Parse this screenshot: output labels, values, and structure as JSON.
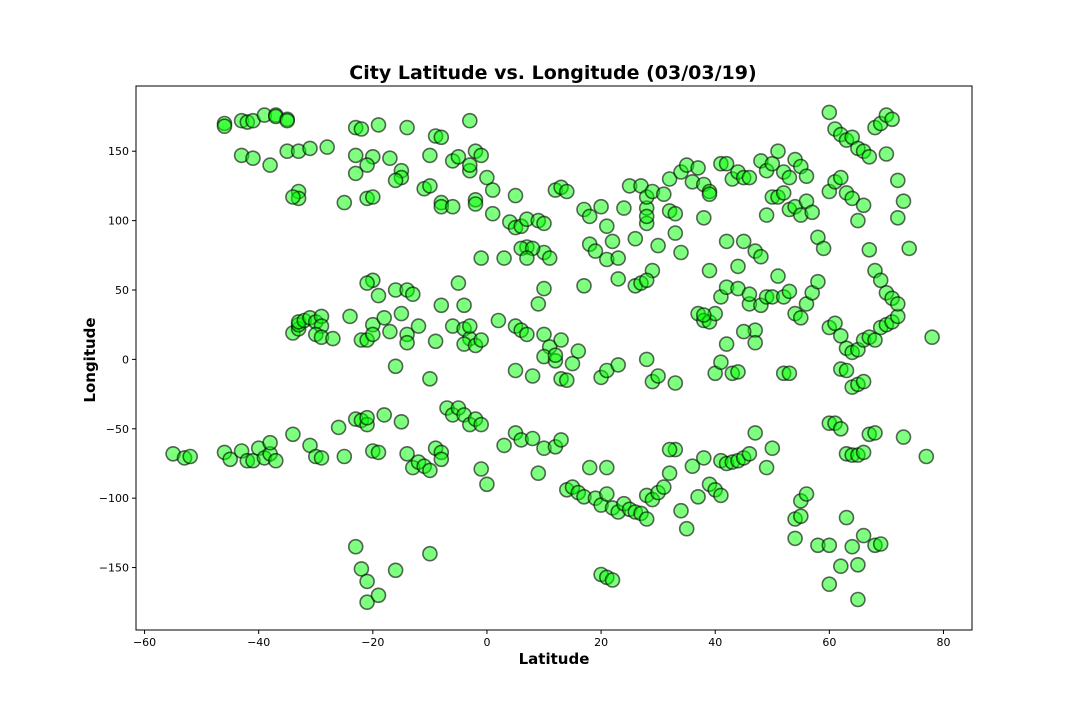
{
  "chart_data": {
    "type": "scatter",
    "title": "City Latitude vs. Longitude (03/03/19)",
    "xlabel": "Latitude",
    "ylabel": "Longitude",
    "xlim": [
      -61.5,
      85
    ],
    "ylim": [
      -195,
      197
    ],
    "xticks": [
      -60,
      -40,
      -20,
      0,
      20,
      40,
      60,
      80
    ],
    "yticks": [
      -150,
      -100,
      -50,
      0,
      50,
      100,
      150
    ],
    "grid": false,
    "marker": {
      "fill": "#00ff00",
      "edge": "#000000",
      "fill_alpha": 0.5
    },
    "points": [
      [
        -46,
        170
      ],
      [
        -46,
        168
      ],
      [
        -43,
        172
      ],
      [
        -42,
        171
      ],
      [
        -41,
        172
      ],
      [
        -39,
        176
      ],
      [
        -37,
        176
      ],
      [
        -37,
        175
      ],
      [
        -35,
        173
      ],
      [
        -35,
        172
      ],
      [
        -43,
        147
      ],
      [
        -41,
        145
      ],
      [
        -38,
        140
      ],
      [
        -35,
        150
      ],
      [
        -33,
        150
      ],
      [
        -31,
        152
      ],
      [
        -28,
        153
      ],
      [
        -33,
        121
      ],
      [
        -33,
        116
      ],
      [
        -34,
        117
      ],
      [
        -23,
        167
      ],
      [
        -22,
        166
      ],
      [
        -19,
        169
      ],
      [
        -14,
        167
      ],
      [
        -3,
        172
      ],
      [
        -23,
        147
      ],
      [
        -20,
        146
      ],
      [
        -21,
        140
      ],
      [
        -17,
        145
      ],
      [
        -15,
        136
      ],
      [
        -15,
        131
      ],
      [
        -16,
        129
      ],
      [
        -25,
        113
      ],
      [
        -23,
        134
      ],
      [
        -21,
        116
      ],
      [
        -20,
        117
      ],
      [
        -11,
        123
      ],
      [
        -10,
        125
      ],
      [
        -9,
        161
      ],
      [
        -8,
        160
      ],
      [
        -10,
        147
      ],
      [
        -6,
        143
      ],
      [
        -5,
        146
      ],
      [
        -2,
        150
      ],
      [
        -1,
        147
      ],
      [
        0,
        131
      ],
      [
        -3,
        136
      ],
      [
        -3,
        140
      ],
      [
        -8,
        113
      ],
      [
        -8,
        110
      ],
      [
        -6,
        110
      ],
      [
        -2,
        115
      ],
      [
        -2,
        112
      ],
      [
        1,
        122
      ],
      [
        1,
        105
      ],
      [
        4,
        99
      ],
      [
        5,
        95
      ],
      [
        5,
        118
      ],
      [
        6,
        96
      ],
      [
        7,
        101
      ],
      [
        9,
        100
      ],
      [
        10,
        98
      ],
      [
        10,
        77
      ],
      [
        11,
        73
      ],
      [
        12,
        122
      ],
      [
        13,
        124
      ],
      [
        14,
        121
      ],
      [
        7,
        81
      ],
      [
        6,
        80
      ],
      [
        8,
        80
      ],
      [
        -1,
        73
      ],
      [
        3,
        73
      ],
      [
        7,
        73
      ],
      [
        -20,
        57
      ],
      [
        -21,
        55
      ],
      [
        -19,
        46
      ],
      [
        -16,
        50
      ],
      [
        -14,
        50
      ],
      [
        -13,
        47
      ],
      [
        -5,
        55
      ],
      [
        -34,
        19
      ],
      [
        -33,
        22
      ],
      [
        -33,
        25
      ],
      [
        -33,
        27
      ],
      [
        -32,
        28
      ],
      [
        -31,
        30
      ],
      [
        -30,
        27
      ],
      [
        -29,
        31
      ],
      [
        -29,
        24
      ],
      [
        -30,
        18
      ],
      [
        -29,
        16
      ],
      [
        -27,
        15
      ],
      [
        -24,
        31
      ],
      [
        -22,
        14
      ],
      [
        -21,
        14
      ],
      [
        -20,
        25
      ],
      [
        -18,
        30
      ],
      [
        -20,
        18
      ],
      [
        -17,
        20
      ],
      [
        -15,
        33
      ],
      [
        -14,
        18
      ],
      [
        -14,
        12
      ],
      [
        -12,
        24
      ],
      [
        -9,
        13
      ],
      [
        -8,
        39
      ],
      [
        -6,
        24
      ],
      [
        -4,
        22
      ],
      [
        -4,
        39
      ],
      [
        -3,
        15
      ],
      [
        -3,
        24
      ],
      [
        -4,
        11
      ],
      [
        -2,
        10
      ],
      [
        -1,
        14
      ],
      [
        2,
        28
      ],
      [
        5,
        24
      ],
      [
        6,
        21
      ],
      [
        7,
        18
      ],
      [
        8,
        -12
      ],
      [
        10,
        18
      ],
      [
        11,
        9
      ],
      [
        10,
        2
      ],
      [
        12,
        -1
      ],
      [
        12,
        3
      ],
      [
        13,
        14
      ],
      [
        13,
        -14
      ],
      [
        14,
        -15
      ],
      [
        15,
        -3
      ],
      [
        16,
        6
      ],
      [
        9,
        40
      ],
      [
        10,
        51
      ],
      [
        17,
        53
      ],
      [
        18,
        83
      ],
      [
        19,
        78
      ],
      [
        20,
        110
      ],
      [
        21,
        96
      ],
      [
        22,
        85
      ],
      [
        17,
        108
      ],
      [
        18,
        103
      ],
      [
        21,
        72
      ],
      [
        23,
        73
      ],
      [
        23,
        58
      ],
      [
        24,
        109
      ],
      [
        25,
        125
      ],
      [
        26,
        87
      ],
      [
        27,
        125
      ],
      [
        28,
        109
      ],
      [
        28,
        98
      ],
      [
        28,
        103
      ],
      [
        29,
        64
      ],
      [
        30,
        82
      ],
      [
        26,
        53
      ],
      [
        27,
        55
      ],
      [
        28,
        57
      ],
      [
        28,
        117
      ],
      [
        29,
        121
      ],
      [
        31,
        119
      ],
      [
        32,
        107
      ],
      [
        33,
        105
      ],
      [
        32,
        130
      ],
      [
        33,
        91
      ],
      [
        34,
        135
      ],
      [
        35,
        140
      ],
      [
        36,
        128
      ],
      [
        37,
        138
      ],
      [
        38,
        126
      ],
      [
        39,
        121
      ],
      [
        39,
        119
      ],
      [
        41,
        141
      ],
      [
        42,
        141
      ],
      [
        43,
        130
      ],
      [
        44,
        135
      ],
      [
        45,
        131
      ],
      [
        46,
        131
      ],
      [
        48,
        143
      ],
      [
        49,
        136
      ],
      [
        50,
        141
      ],
      [
        51,
        150
      ],
      [
        52,
        135
      ],
      [
        53,
        131
      ],
      [
        54,
        144
      ],
      [
        55,
        139
      ],
      [
        56,
        132
      ],
      [
        38,
        102
      ],
      [
        39,
        64
      ],
      [
        42,
        85
      ],
      [
        44,
        67
      ],
      [
        45,
        85
      ],
      [
        47,
        78
      ],
      [
        48,
        74
      ],
      [
        49,
        104
      ],
      [
        50,
        117
      ],
      [
        51,
        117
      ],
      [
        52,
        120
      ],
      [
        53,
        108
      ],
      [
        54,
        110
      ],
      [
        55,
        104
      ],
      [
        56,
        114
      ],
      [
        57,
        106
      ],
      [
        58,
        88
      ],
      [
        59,
        80
      ],
      [
        37,
        33
      ],
      [
        38,
        28
      ],
      [
        39,
        27
      ],
      [
        40,
        33
      ],
      [
        41,
        45
      ],
      [
        42,
        52
      ],
      [
        44,
        51
      ],
      [
        46,
        40
      ],
      [
        47,
        21
      ],
      [
        48,
        39
      ],
      [
        49,
        45
      ],
      [
        50,
        45
      ],
      [
        51,
        60
      ],
      [
        52,
        45
      ],
      [
        53,
        49
      ],
      [
        54,
        33
      ],
      [
        55,
        30
      ],
      [
        56,
        40
      ],
      [
        57,
        48
      ],
      [
        58,
        56
      ],
      [
        60,
        23
      ],
      [
        61,
        26
      ],
      [
        62,
        17
      ],
      [
        63,
        8
      ],
      [
        64,
        5
      ],
      [
        65,
        7
      ],
      [
        66,
        14
      ],
      [
        67,
        16
      ],
      [
        68,
        14
      ],
      [
        69,
        23
      ],
      [
        70,
        25
      ],
      [
        71,
        27
      ],
      [
        72,
        31
      ],
      [
        62,
        -7
      ],
      [
        63,
        -8
      ],
      [
        64,
        -20
      ],
      [
        65,
        -18
      ],
      [
        66,
        -16
      ],
      [
        67,
        -54
      ],
      [
        68,
        -53
      ],
      [
        60,
        -46
      ],
      [
        61,
        -46
      ],
      [
        62,
        -50
      ],
      [
        63,
        -68
      ],
      [
        64,
        -69
      ],
      [
        65,
        -69
      ],
      [
        66,
        -67
      ],
      [
        73,
        -56
      ],
      [
        77,
        -70
      ],
      [
        78,
        16
      ],
      [
        60,
        178
      ],
      [
        61,
        166
      ],
      [
        62,
        162
      ],
      [
        63,
        158
      ],
      [
        64,
        160
      ],
      [
        65,
        152
      ],
      [
        66,
        150
      ],
      [
        67,
        146
      ],
      [
        68,
        167
      ],
      [
        69,
        170
      ],
      [
        70,
        176
      ],
      [
        71,
        173
      ],
      [
        70,
        148
      ],
      [
        72,
        129
      ],
      [
        73,
        114
      ],
      [
        72,
        102
      ],
      [
        74,
        80
      ],
      [
        60,
        121
      ],
      [
        61,
        128
      ],
      [
        62,
        131
      ],
      [
        63,
        120
      ],
      [
        64,
        116
      ],
      [
        65,
        100
      ],
      [
        66,
        111
      ],
      [
        67,
        79
      ],
      [
        68,
        64
      ],
      [
        69,
        57
      ],
      [
        70,
        48
      ],
      [
        71,
        44
      ],
      [
        72,
        40
      ],
      [
        -55,
        -68
      ],
      [
        -53,
        -71
      ],
      [
        -52,
        -70
      ],
      [
        -46,
        -67
      ],
      [
        -45,
        -72
      ],
      [
        -43,
        -66
      ],
      [
        -42,
        -73
      ],
      [
        -41,
        -73
      ],
      [
        -40,
        -64
      ],
      [
        -39,
        -71
      ],
      [
        -38,
        -68
      ],
      [
        -37,
        -73
      ],
      [
        -38,
        -60
      ],
      [
        -34,
        -54
      ],
      [
        -31,
        -62
      ],
      [
        -30,
        -70
      ],
      [
        -29,
        -71
      ],
      [
        -26,
        -49
      ],
      [
        -25,
        -70
      ],
      [
        -23,
        -43
      ],
      [
        -22,
        -44
      ],
      [
        -21,
        -47
      ],
      [
        -21,
        -42
      ],
      [
        -20,
        -66
      ],
      [
        -19,
        -67
      ],
      [
        -18,
        -40
      ],
      [
        -15,
        -45
      ],
      [
        -14,
        -68
      ],
      [
        -13,
        -78
      ],
      [
        -12,
        -74
      ],
      [
        -11,
        -77
      ],
      [
        -10,
        -80
      ],
      [
        -9,
        -64
      ],
      [
        -8,
        -67
      ],
      [
        -8,
        -72
      ],
      [
        -7,
        -35
      ],
      [
        -6,
        -40
      ],
      [
        -5,
        -35
      ],
      [
        -4,
        -40
      ],
      [
        -3,
        -47
      ],
      [
        -2,
        -43
      ],
      [
        -1,
        -47
      ],
      [
        -1,
        -79
      ],
      [
        0,
        -90
      ],
      [
        3,
        -62
      ],
      [
        5,
        -53
      ],
      [
        6,
        -58
      ],
      [
        8,
        -57
      ],
      [
        9,
        -82
      ],
      [
        10,
        -64
      ],
      [
        12,
        -63
      ],
      [
        13,
        -58
      ],
      [
        14,
        -94
      ],
      [
        15,
        -92
      ],
      [
        16,
        -96
      ],
      [
        17,
        -99
      ],
      [
        18,
        -78
      ],
      [
        19,
        -100
      ],
      [
        20,
        -105
      ],
      [
        21,
        -78
      ],
      [
        21,
        -97
      ],
      [
        22,
        -107
      ],
      [
        23,
        -110
      ],
      [
        24,
        -104
      ],
      [
        25,
        -108
      ],
      [
        26,
        -110
      ],
      [
        27,
        -111
      ],
      [
        28,
        -115
      ],
      [
        28,
        -98
      ],
      [
        29,
        -101
      ],
      [
        30,
        -96
      ],
      [
        31,
        -92
      ],
      [
        32,
        -82
      ],
      [
        33,
        -65
      ],
      [
        32,
        -65
      ],
      [
        34,
        -109
      ],
      [
        35,
        -122
      ],
      [
        36,
        -77
      ],
      [
        37,
        -99
      ],
      [
        38,
        -71
      ],
      [
        39,
        -90
      ],
      [
        40,
        -94
      ],
      [
        41,
        -98
      ],
      [
        41,
        -73
      ],
      [
        42,
        -75
      ],
      [
        43,
        -74
      ],
      [
        44,
        -73
      ],
      [
        45,
        -71
      ],
      [
        46,
        -68
      ],
      [
        47,
        -53
      ],
      [
        49,
        -78
      ],
      [
        50,
        -64
      ],
      [
        52,
        -10
      ],
      [
        53,
        -10
      ],
      [
        54,
        -115
      ],
      [
        55,
        -113
      ],
      [
        55,
        -102
      ],
      [
        56,
        -97
      ],
      [
        54,
        -129
      ],
      [
        58,
        -134
      ],
      [
        60,
        -134
      ],
      [
        62,
        -149
      ],
      [
        63,
        -114
      ],
      [
        64,
        -135
      ],
      [
        65,
        -148
      ],
      [
        66,
        -127
      ],
      [
        68,
        -134
      ],
      [
        69,
        -133
      ],
      [
        65,
        -173
      ],
      [
        60,
        -162
      ],
      [
        -23,
        -135
      ],
      [
        -22,
        -151
      ],
      [
        -21,
        -160
      ],
      [
        -21,
        -175
      ],
      [
        -19,
        -170
      ],
      [
        -16,
        -152
      ],
      [
        -10,
        -140
      ],
      [
        20,
        -155
      ],
      [
        21,
        -157
      ],
      [
        22,
        -159
      ],
      [
        -10,
        -14
      ],
      [
        -16,
        -5
      ],
      [
        5,
        -8
      ],
      [
        20,
        -13
      ],
      [
        21,
        -8
      ],
      [
        23,
        -4
      ],
      [
        28,
        0
      ],
      [
        29,
        -16
      ],
      [
        30,
        -12
      ],
      [
        33,
        -17
      ],
      [
        34,
        77
      ],
      [
        38,
        32
      ],
      [
        40,
        -10
      ],
      [
        41,
        -2
      ],
      [
        42,
        11
      ],
      [
        43,
        -10
      ],
      [
        44,
        -9
      ],
      [
        45,
        20
      ],
      [
        46,
        47
      ],
      [
        47,
        12
      ]
    ]
  }
}
